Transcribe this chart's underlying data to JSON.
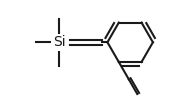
{
  "bg_color": "#ffffff",
  "line_color": "#1a1a1a",
  "line_width": 1.5,
  "si_label": "Si",
  "si_font_size": 10,
  "fig_width": 1.91,
  "fig_height": 1.04,
  "dpi": 100
}
